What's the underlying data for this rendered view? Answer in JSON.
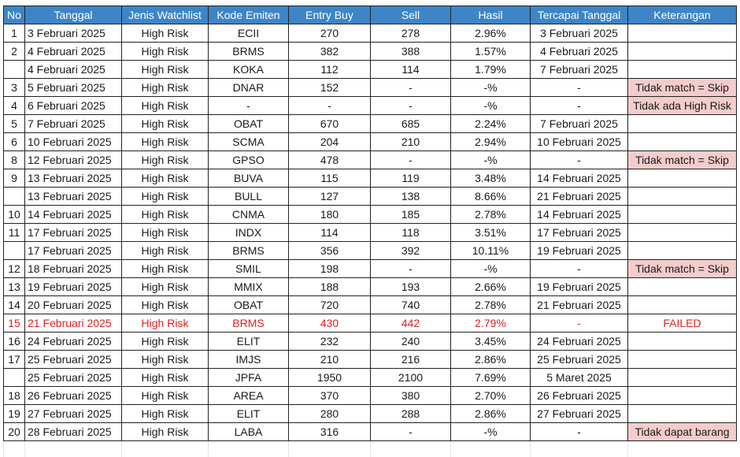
{
  "headers": {
    "no": "No",
    "tanggal": "Tanggal",
    "jenis": "Jenis Watchlist",
    "kode": "Kode Emiten",
    "entry": "Entry Buy",
    "sell": "Sell",
    "hasil": "Hasil",
    "tercapai": "Tercapai Tanggal",
    "keterangan": "Keterangan"
  },
  "colors": {
    "header_bg": "#3d85c6",
    "note_bg": "#f4cccc",
    "failed_text": "#e02020"
  },
  "rows": [
    {
      "no": "1",
      "tanggal": "3 Februari 2025",
      "jenis": "High Risk",
      "kode": "ECII",
      "entry": "270",
      "sell": "278",
      "hasil": "2.96%",
      "tercapai": "3 Februari 2025",
      "ket": "",
      "note": false,
      "failed": false
    },
    {
      "no": "2",
      "tanggal": "4 Februari 2025",
      "jenis": "High Risk",
      "kode": "BRMS",
      "entry": "382",
      "sell": "388",
      "hasil": "1.57%",
      "tercapai": "4 Februari 2025",
      "ket": "",
      "note": false,
      "failed": false
    },
    {
      "no": "",
      "tanggal": "4 Februari 2025",
      "jenis": "High Risk",
      "kode": "KOKA",
      "entry": "112",
      "sell": "114",
      "hasil": "1.79%",
      "tercapai": "7 Februari 2025",
      "ket": "",
      "note": false,
      "failed": false
    },
    {
      "no": "3",
      "tanggal": "5 Februari 2025",
      "jenis": "High Risk",
      "kode": "DNAR",
      "entry": "152",
      "sell": "-",
      "hasil": "-%",
      "tercapai": "-",
      "ket": "Tidak match = Skip",
      "note": true,
      "failed": false
    },
    {
      "no": "4",
      "tanggal": "6 Februari 2025",
      "jenis": "High Risk",
      "kode": "-",
      "entry": "-",
      "sell": "-",
      "hasil": "-%",
      "tercapai": "-",
      "ket": "Tidak ada High Risk",
      "note": true,
      "failed": false
    },
    {
      "no": "5",
      "tanggal": "7 Februari 2025",
      "jenis": "High Risk",
      "kode": "OBAT",
      "entry": "670",
      "sell": "685",
      "hasil": "2.24%",
      "tercapai": "7 Februari 2025",
      "ket": "",
      "note": false,
      "failed": false
    },
    {
      "no": "6",
      "tanggal": "10 Februari 2025",
      "jenis": "High Risk",
      "kode": "SCMA",
      "entry": "204",
      "sell": "210",
      "hasil": "2.94%",
      "tercapai": "10 Februari 2025",
      "ket": "",
      "note": false,
      "failed": false
    },
    {
      "no": "8",
      "tanggal": "12 Februari 2025",
      "jenis": "High Risk",
      "kode": "GPSO",
      "entry": "478",
      "sell": "-",
      "hasil": "-%",
      "tercapai": "-",
      "ket": "Tidak match = Skip",
      "note": true,
      "failed": false
    },
    {
      "no": "9",
      "tanggal": "13 Februari 2025",
      "jenis": "High Risk",
      "kode": "BUVA",
      "entry": "115",
      "sell": "119",
      "hasil": "3.48%",
      "tercapai": "14 Februari 2025",
      "ket": "",
      "note": false,
      "failed": false
    },
    {
      "no": "",
      "tanggal": "13 Februari 2025",
      "jenis": "High Risk",
      "kode": "BULL",
      "entry": "127",
      "sell": "138",
      "hasil": "8.66%",
      "tercapai": "21 Februari 2025",
      "ket": "",
      "note": false,
      "failed": false
    },
    {
      "no": "10",
      "tanggal": "14 Februari 2025",
      "jenis": "High Risk",
      "kode": "CNMA",
      "entry": "180",
      "sell": "185",
      "hasil": "2.78%",
      "tercapai": "14 Februari 2025",
      "ket": "",
      "note": false,
      "failed": false
    },
    {
      "no": "11",
      "tanggal": "17 Februari 2025",
      "jenis": "High Risk",
      "kode": "INDX",
      "entry": "114",
      "sell": "118",
      "hasil": "3.51%",
      "tercapai": "17 Februari 2025",
      "ket": "",
      "note": false,
      "failed": false
    },
    {
      "no": "",
      "tanggal": "17 Februari 2025",
      "jenis": "High Risk",
      "kode": "BRMS",
      "entry": "356",
      "sell": "392",
      "hasil": "10.11%",
      "tercapai": "19 Februari 2025",
      "ket": "",
      "note": false,
      "failed": false
    },
    {
      "no": "12",
      "tanggal": "18 Februari 2025",
      "jenis": "High Risk",
      "kode": "SMIL",
      "entry": "198",
      "sell": "-",
      "hasil": "-%",
      "tercapai": "-",
      "ket": "Tidak match = Skip",
      "note": true,
      "failed": false
    },
    {
      "no": "13",
      "tanggal": "19 Februari 2025",
      "jenis": "High Risk",
      "kode": "MMIX",
      "entry": "188",
      "sell": "193",
      "hasil": "2.66%",
      "tercapai": "19 Februari 2025",
      "ket": "",
      "note": false,
      "failed": false
    },
    {
      "no": "14",
      "tanggal": "20 Februari 2025",
      "jenis": "High Risk",
      "kode": "OBAT",
      "entry": "720",
      "sell": "740",
      "hasil": "2.78%",
      "tercapai": "21 Februari 2025",
      "ket": "",
      "note": false,
      "failed": false
    },
    {
      "no": "15",
      "tanggal": "21 Februari 2025",
      "jenis": "High Risk",
      "kode": "BRMS",
      "entry": "430",
      "sell": "442",
      "hasil": "2.79%",
      "tercapai": "-",
      "ket": "FAILED",
      "note": false,
      "failed": true
    },
    {
      "no": "16",
      "tanggal": "24 Februari 2025",
      "jenis": "High Risk",
      "kode": "ELIT",
      "entry": "232",
      "sell": "240",
      "hasil": "3.45%",
      "tercapai": "24 Februari 2025",
      "ket": "",
      "note": false,
      "failed": false
    },
    {
      "no": "17",
      "tanggal": "25 Februari 2025",
      "jenis": "High Risk",
      "kode": "IMJS",
      "entry": "210",
      "sell": "216",
      "hasil": "2.86%",
      "tercapai": "25 Februari 2025",
      "ket": "",
      "note": false,
      "failed": false
    },
    {
      "no": "",
      "tanggal": "25 Februari 2025",
      "jenis": "High Risk",
      "kode": "JPFA",
      "entry": "1950",
      "sell": "2100",
      "hasil": "7.69%",
      "tercapai": "5 Maret 2025",
      "ket": "",
      "note": false,
      "failed": false
    },
    {
      "no": "18",
      "tanggal": "26 Februari 2025",
      "jenis": "High Risk",
      "kode": "AREA",
      "entry": "370",
      "sell": "380",
      "hasil": "2.70%",
      "tercapai": "26 Februari 2025",
      "ket": "",
      "note": false,
      "failed": false
    },
    {
      "no": "19",
      "tanggal": "27 Februari 2025",
      "jenis": "High Risk",
      "kode": "ELIT",
      "entry": "280",
      "sell": "288",
      "hasil": "2.86%",
      "tercapai": "27 Februari 2025",
      "ket": "",
      "note": false,
      "failed": false
    },
    {
      "no": "20",
      "tanggal": "28 Februari 2025",
      "jenis": "High Risk",
      "kode": "LABA",
      "entry": "316",
      "sell": "-",
      "hasil": "-%",
      "tercapai": "-",
      "ket": "Tidak dapat barang",
      "note": true,
      "failed": false
    }
  ]
}
